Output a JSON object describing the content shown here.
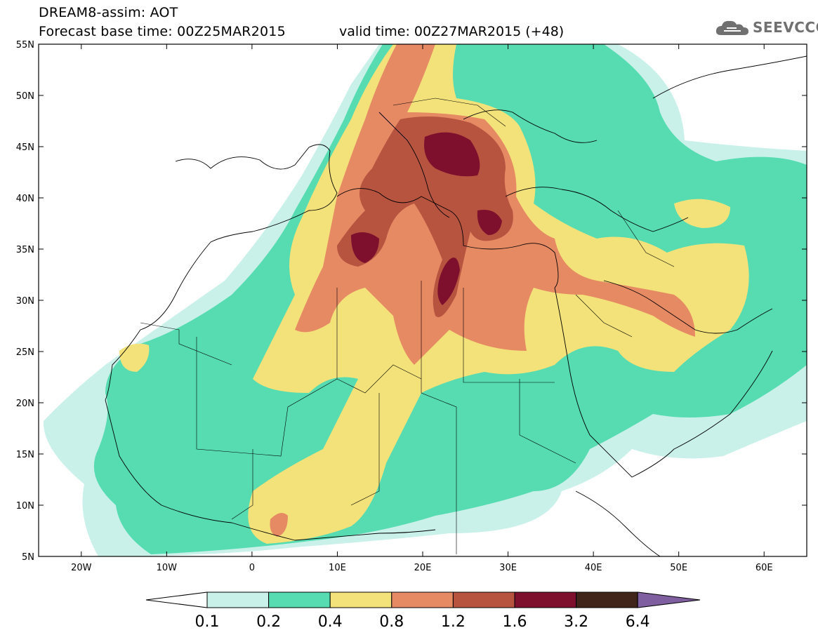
{
  "header": {
    "title_line1": "DREAM8-assim: AOT",
    "title_line2": "Forecast base time: 00Z25MAR2015",
    "valid_time": "valid time: 00Z27MAR2015 (+48)",
    "logo_text": "SEEVCCC"
  },
  "map": {
    "extent": {
      "lon_min": -25,
      "lon_max": 65,
      "lat_min": 5,
      "lat_max": 55
    },
    "lat_ticks": [
      "55N",
      "50N",
      "45N",
      "40N",
      "35N",
      "30N",
      "25N",
      "20N",
      "15N",
      "10N",
      "5N"
    ],
    "lon_ticks": [
      "20W",
      "10W",
      "0",
      "10E",
      "20E",
      "30E",
      "40E",
      "50E",
      "60E"
    ],
    "background_color": "#ffffff"
  },
  "colorbar": {
    "levels": [
      "0.1",
      "0.2",
      "0.4",
      "0.8",
      "1.2",
      "1.6",
      "3.2",
      "6.4"
    ],
    "colors": [
      "#ffffff",
      "#c9f1ea",
      "#56dcb0",
      "#f3e27a",
      "#e68a64",
      "#b75440",
      "#7e0f2d",
      "#40251a",
      "#7f5f9f"
    ]
  }
}
